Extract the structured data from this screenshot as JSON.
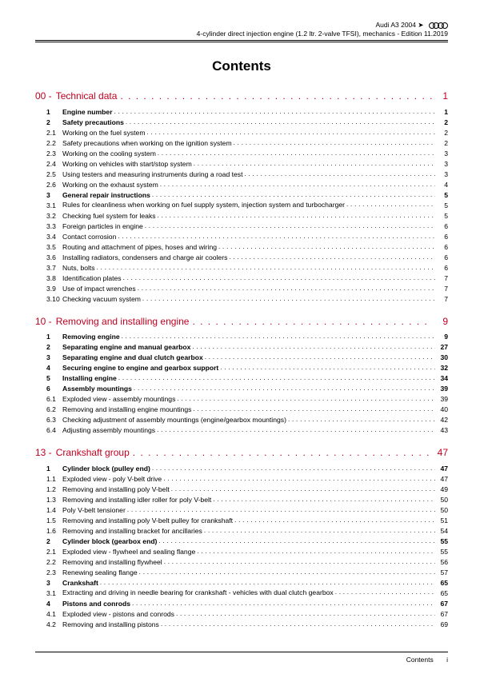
{
  "header": {
    "model": "Audi A3 2004 ➤",
    "subtitle": "4-cylinder direct injection engine (1.2 ltr. 2-valve TFSI), mechanics - Edition 11.2019"
  },
  "title": "Contents",
  "sections": [
    {
      "num": "00 -",
      "label": "Technical data",
      "page": "1",
      "items": [
        {
          "num": "1",
          "label": "Engine number",
          "page": "1",
          "bold": true
        },
        {
          "num": "2",
          "label": "Safety precautions",
          "page": "2",
          "bold": true
        },
        {
          "num": "2.1",
          "label": "Working on the fuel system",
          "page": "2"
        },
        {
          "num": "2.2",
          "label": "Safety precautions when working on the ignition system",
          "page": "2"
        },
        {
          "num": "2.3",
          "label": "Working on the cooling system",
          "page": "3"
        },
        {
          "num": "2.4",
          "label": "Working on vehicles with start/stop system",
          "page": "3"
        },
        {
          "num": "2.5",
          "label": "Using testers and measuring instruments during a road test",
          "page": "3"
        },
        {
          "num": "2.6",
          "label": "Working on the exhaust system",
          "page": "4"
        },
        {
          "num": "3",
          "label": "General repair instructions",
          "page": "5",
          "bold": true
        },
        {
          "num": "3.1",
          "label": "Rules for cleanliness when working on fuel supply system, injection system and turbocharger",
          "page": "5",
          "wrap": true
        },
        {
          "num": "3.2",
          "label": "Checking fuel system for leaks",
          "page": "5"
        },
        {
          "num": "3.3",
          "label": "Foreign particles in engine",
          "page": "6"
        },
        {
          "num": "3.4",
          "label": "Contact corrosion",
          "page": "6"
        },
        {
          "num": "3.5",
          "label": "Routing and attachment of pipes, hoses and wiring",
          "page": "6"
        },
        {
          "num": "3.6",
          "label": "Installing radiators, condensers and charge air coolers",
          "page": "6"
        },
        {
          "num": "3.7",
          "label": "Nuts, bolts",
          "page": "6"
        },
        {
          "num": "3.8",
          "label": "Identification plates",
          "page": "7"
        },
        {
          "num": "3.9",
          "label": "Use of impact wrenches",
          "page": "7"
        },
        {
          "num": "3.10",
          "label": "Checking vacuum system",
          "page": "7"
        }
      ]
    },
    {
      "num": "10 -",
      "label": "Removing and installing engine",
      "page": "9",
      "items": [
        {
          "num": "1",
          "label": "Removing engine",
          "page": "9",
          "bold": true
        },
        {
          "num": "2",
          "label": "Separating engine and manual gearbox",
          "page": "27",
          "bold": true
        },
        {
          "num": "3",
          "label": "Separating engine and dual clutch gearbox",
          "page": "30",
          "bold": true
        },
        {
          "num": "4",
          "label": "Securing engine to engine and gearbox support",
          "page": "32",
          "bold": true
        },
        {
          "num": "5",
          "label": "Installing engine",
          "page": "34",
          "bold": true
        },
        {
          "num": "6",
          "label": "Assembly mountings",
          "page": "39",
          "bold": true
        },
        {
          "num": "6.1",
          "label": "Exploded view - assembly mountings",
          "page": "39"
        },
        {
          "num": "6.2",
          "label": "Removing and installing engine mountings",
          "page": "40"
        },
        {
          "num": "6.3",
          "label": "Checking adjustment of assembly mountings (engine/gearbox mountings)",
          "page": "42"
        },
        {
          "num": "6.4",
          "label": "Adjusting assembly mountings",
          "page": "43"
        }
      ]
    },
    {
      "num": "13 -",
      "label": "Crankshaft group",
      "page": "47",
      "items": [
        {
          "num": "1",
          "label": "Cylinder block (pulley end)",
          "page": "47",
          "bold": true
        },
        {
          "num": "1.1",
          "label": "Exploded view - poly V-belt drive",
          "page": "47"
        },
        {
          "num": "1.2",
          "label": "Removing and installing poly V-belt",
          "page": "49"
        },
        {
          "num": "1.3",
          "label": "Removing and installing idler roller for poly V-belt",
          "page": "50"
        },
        {
          "num": "1.4",
          "label": "Poly V-belt tensioner",
          "page": "50"
        },
        {
          "num": "1.5",
          "label": "Removing and installing poly V-belt pulley for crankshaft",
          "page": "51"
        },
        {
          "num": "1.6",
          "label": "Removing and installing bracket for ancillaries",
          "page": "54"
        },
        {
          "num": "2",
          "label": "Cylinder block (gearbox end)",
          "page": "55",
          "bold": true
        },
        {
          "num": "2.1",
          "label": "Exploded view - flywheel and sealing flange",
          "page": "55"
        },
        {
          "num": "2.2",
          "label": "Removing and installing flywheel",
          "page": "56"
        },
        {
          "num": "2.3",
          "label": "Renewing sealing flange",
          "page": "57"
        },
        {
          "num": "3",
          "label": "Crankshaft",
          "page": "65",
          "bold": true
        },
        {
          "num": "3.1",
          "label": "Extracting and driving in needle bearing for crankshaft - vehicles with dual clutch gearbox",
          "page": "65",
          "wrap": true,
          "pagebelow": true
        },
        {
          "num": "4",
          "label": "Pistons and conrods",
          "page": "67",
          "bold": true
        },
        {
          "num": "4.1",
          "label": "Exploded view - pistons and conrods",
          "page": "67"
        },
        {
          "num": "4.2",
          "label": "Removing and installing pistons",
          "page": "69"
        }
      ]
    }
  ],
  "footer": {
    "label": "Contents",
    "page": "i"
  },
  "colors": {
    "accent": "#c00020"
  }
}
